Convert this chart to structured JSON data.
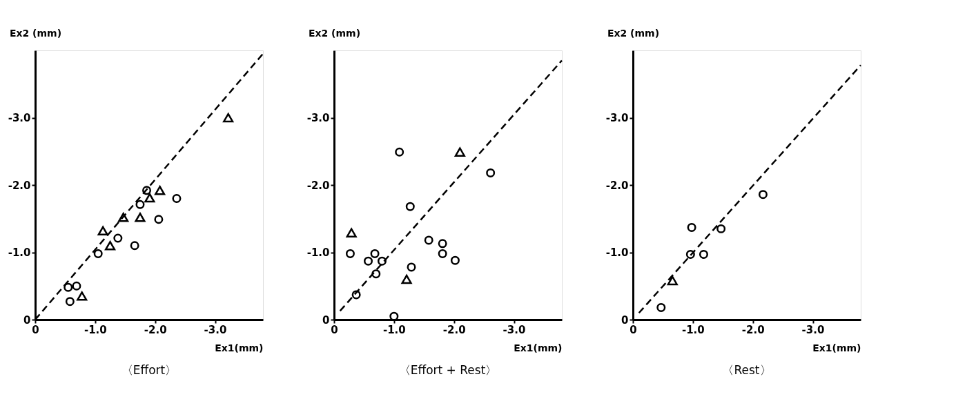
{
  "chart_data": [
    {
      "type": "scatter",
      "title": "〈Effort〉",
      "xlabel": "Ex1(mm)",
      "ylabel": "Ex2 (mm)",
      "xlim": [
        0,
        -3.8
      ],
      "ylim": [
        0,
        -4.0
      ],
      "xticks": [
        0,
        {
          "value": -1,
          "label": "-1.0"
        },
        {
          "value": -2,
          "label": "-2.0"
        },
        {
          "value": -3,
          "label": "-3.0"
        }
      ],
      "yticks": [
        0,
        {
          "value": -1,
          "label": "-1.0"
        },
        {
          "value": -2,
          "label": "-2.0"
        },
        {
          "value": -3,
          "label": "-3.0"
        }
      ],
      "grid": false,
      "legend": false,
      "series": [
        {
          "type": "line",
          "line_style": "dashed",
          "color": "#000000",
          "x": [
            0,
            -3.8
          ],
          "values": [
            0,
            -3.95
          ]
        },
        {
          "marker": "circle",
          "color": "#000000",
          "x": [
            -0.55,
            -0.58,
            -0.69,
            -1.05,
            -1.38,
            -1.66,
            -1.75,
            -1.86,
            -2.06,
            -2.36
          ],
          "values": [
            -0.48,
            -0.27,
            -0.5,
            -0.98,
            -1.21,
            -1.1,
            -1.71,
            -1.92,
            -1.49,
            -1.8
          ]
        },
        {
          "marker": "triangle",
          "color": "#000000",
          "x": [
            -0.78,
            -1.13,
            -1.25,
            -1.47,
            -1.75,
            -1.91,
            -2.08,
            -3.22
          ],
          "values": [
            -0.35,
            -1.32,
            -1.1,
            -1.52,
            -1.52,
            -1.81,
            -1.92,
            -3.0
          ]
        }
      ]
    },
    {
      "type": "scatter",
      "title": "〈Effort + Rest〉",
      "xlabel": "Ex1(mm)",
      "ylabel": "Ex2 (mm)",
      "xlim": [
        0,
        -3.8
      ],
      "ylim": [
        0,
        -4.0
      ],
      "xticks": [
        0,
        {
          "value": -1,
          "label": "-1.0"
        },
        {
          "value": -2,
          "label": "-2.0"
        },
        {
          "value": -3,
          "label": "-3.0"
        }
      ],
      "yticks": [
        0,
        {
          "value": -1,
          "label": "-1.0"
        },
        {
          "value": -2,
          "label": "-2.0"
        },
        {
          "value": -3,
          "label": "-3.0"
        }
      ],
      "grid": false,
      "legend": false,
      "series": [
        {
          "type": "line",
          "line_style": "dashed",
          "color": "#000000",
          "x": [
            -0.1,
            -3.8
          ],
          "values": [
            -0.13,
            -3.85
          ]
        },
        {
          "marker": "circle",
          "color": "#000000",
          "x": [
            -0.27,
            -0.37,
            -0.57,
            -0.68,
            -0.7,
            -0.8,
            -1.0,
            -1.09,
            -1.27,
            -1.29,
            -1.58,
            -1.81,
            -1.81,
            -2.02,
            -2.61
          ],
          "values": [
            -0.98,
            -0.37,
            -0.87,
            -0.98,
            -0.68,
            -0.87,
            -0.05,
            -2.49,
            -1.68,
            -0.78,
            -1.18,
            -1.13,
            -0.98,
            -0.88,
            -2.18
          ]
        },
        {
          "marker": "triangle",
          "color": "#000000",
          "x": [
            -0.29,
            -1.21,
            -2.1
          ],
          "values": [
            -1.29,
            -0.6,
            -2.49
          ]
        }
      ]
    },
    {
      "type": "scatter",
      "title": "〈Rest〉",
      "xlabel": "Ex1(mm)",
      "ylabel": "Ex2 (mm)",
      "xlim": [
        0,
        -3.8
      ],
      "ylim": [
        0,
        -4.0
      ],
      "xticks": [
        0,
        {
          "value": -1,
          "label": "-1.0"
        },
        {
          "value": -2,
          "label": "-2.0"
        },
        {
          "value": -3,
          "label": "-3.0"
        }
      ],
      "yticks": [
        0,
        {
          "value": -1,
          "label": "-1.0"
        },
        {
          "value": -2,
          "label": "-2.0"
        },
        {
          "value": -3,
          "label": "-3.0"
        }
      ],
      "grid": false,
      "legend": false,
      "series": [
        {
          "type": "line",
          "line_style": "dashed",
          "color": "#000000",
          "x": [
            -0.1,
            -3.8
          ],
          "values": [
            -0.1,
            -3.78
          ]
        },
        {
          "marker": "circle",
          "color": "#000000",
          "x": [
            -0.47,
            -0.96,
            -0.98,
            -1.18,
            -1.47,
            -2.17
          ],
          "values": [
            -0.18,
            -0.97,
            -1.37,
            -0.97,
            -1.35,
            -1.86
          ]
        },
        {
          "marker": "triangle",
          "color": "#000000",
          "x": [
            -0.66
          ],
          "values": [
            -0.58
          ]
        }
      ]
    }
  ]
}
